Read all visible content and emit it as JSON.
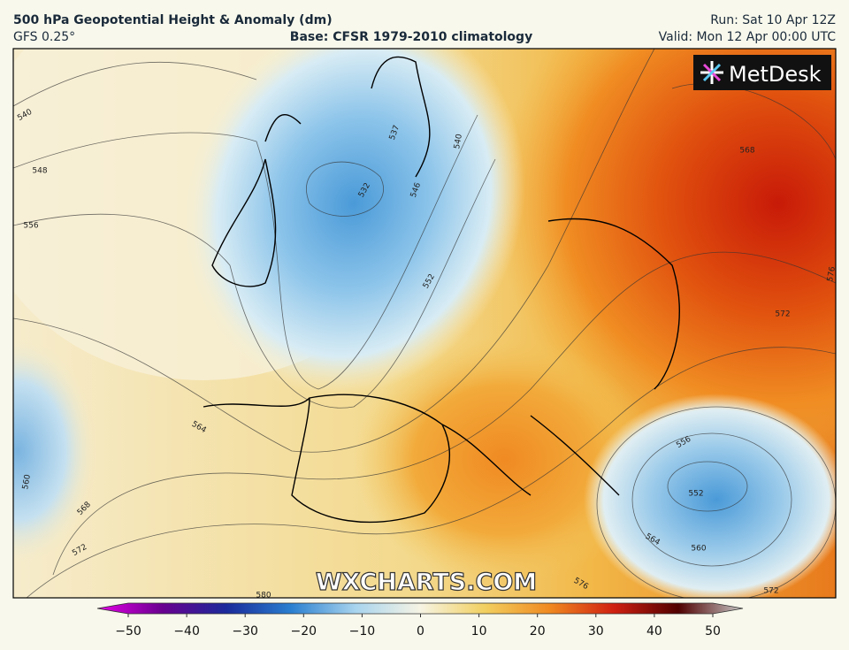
{
  "header": {
    "title": "500 hPa Geopotential Height & Anomaly (dm)",
    "model": "GFS 0.25°",
    "base": "Base: CFSR 1979-2010 climatology",
    "run": "Run: Sat 10 Apr 12Z",
    "valid": "Valid: Mon 12 Apr 00:00 UTC"
  },
  "map": {
    "logo": "MetDesk",
    "watermark": "WXCHARTS.COM",
    "contour_labels": [
      540,
      548,
      556,
      564,
      568,
      572,
      580,
      532,
      537,
      540,
      546,
      552,
      568,
      576,
      572,
      556,
      552,
      564,
      560,
      576,
      572,
      560
    ]
  },
  "colorbar": {
    "ticks": [
      {
        "value": -50,
        "label": "−50"
      },
      {
        "value": -40,
        "label": "−40"
      },
      {
        "value": -30,
        "label": "−30"
      },
      {
        "value": -20,
        "label": "−20"
      },
      {
        "value": -10,
        "label": "−10"
      },
      0,
      10,
      20,
      30,
      40,
      50
    ]
  }
}
